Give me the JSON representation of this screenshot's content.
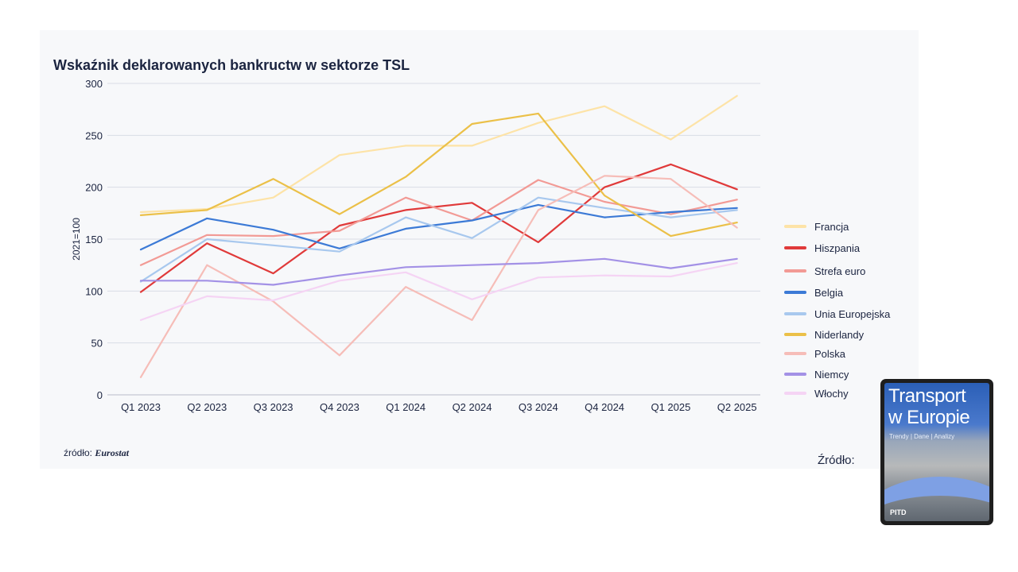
{
  "chart_title": "Wskaźnik deklarowanych bankructw w sektorze TSL",
  "source": {
    "prefix": "źródło:",
    "name": "Eurostat"
  },
  "side_label": "Źródło:",
  "publication": {
    "line1": "Transport",
    "line2": "w Europie",
    "subtitle": "Trendy | Dane | Analizy",
    "logo": "PITD"
  },
  "chart_data": {
    "type": "line",
    "title": "Wskaźnik deklarowanych bankructw w sektorze TSL",
    "xlabel": "",
    "ylabel": "2021=100",
    "ylim": [
      0,
      300
    ],
    "yticks": [
      0,
      50,
      100,
      150,
      200,
      250,
      300
    ],
    "grid": true,
    "legend_position": "right",
    "categories": [
      "Q1 2023",
      "Q2 2023",
      "Q3 2023",
      "Q4 2023",
      "Q1 2024",
      "Q2 2024",
      "Q3 2024",
      "Q4 2024",
      "Q1 2025",
      "Q2 2025"
    ],
    "series": [
      {
        "name": "Francja",
        "color": "#fde3a7",
        "values": [
          176,
          179,
          190,
          231,
          240,
          240,
          262,
          278,
          246,
          288
        ]
      },
      {
        "name": "Hiszpania",
        "color": "#e03a3a",
        "values": [
          99,
          146,
          117,
          163,
          178,
          185,
          147,
          200,
          222,
          198
        ]
      },
      {
        "name": "Strefa euro",
        "color": "#f29a95",
        "values": [
          125,
          154,
          153,
          158,
          190,
          168,
          207,
          186,
          174,
          188
        ]
      },
      {
        "name": "Belgia",
        "color": "#3c7ad6",
        "values": [
          140,
          170,
          159,
          141,
          160,
          168,
          183,
          171,
          176,
          180
        ]
      },
      {
        "name": "Unia Europejska",
        "color": "#a8c8ee",
        "values": [
          109,
          150,
          144,
          138,
          171,
          151,
          190,
          180,
          171,
          178
        ]
      },
      {
        "name": "Niderlandy",
        "color": "#ebc048",
        "values": [
          173,
          178,
          208,
          174,
          210,
          261,
          271,
          192,
          153,
          166
        ]
      },
      {
        "name": "Polska",
        "color": "#f6bdb8",
        "values": [
          17,
          125,
          90,
          38,
          104,
          72,
          178,
          211,
          208,
          161
        ]
      },
      {
        "name": "Niemcy",
        "color": "#a391e6",
        "values": [
          110,
          110,
          106,
          115,
          123,
          125,
          127,
          131,
          122,
          131
        ]
      },
      {
        "name": "Włochy",
        "color": "#f5d4f4",
        "values": [
          72,
          95,
          91,
          110,
          118,
          92,
          113,
          115,
          114,
          127
        ]
      }
    ]
  }
}
